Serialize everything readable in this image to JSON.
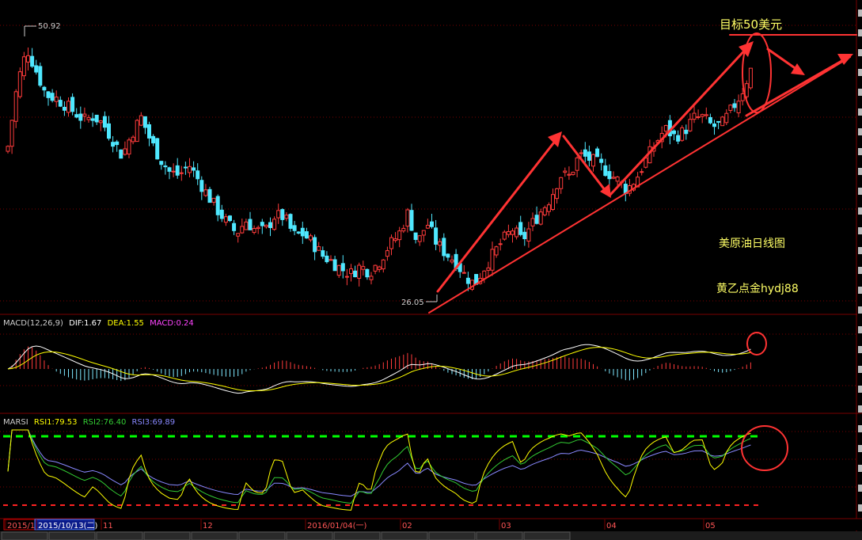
{
  "chart_data": [
    {
      "type": "candlestick",
      "price_high_label": "50.92",
      "price_low_label": "26.05",
      "ylim": [
        24.5,
        53
      ],
      "up_color": "#ff3b3b",
      "down_color": "#4fe8ff",
      "annotation_target": "目标50美元",
      "annotation_title": "美原油日线图",
      "annotation_author": "黄乙点金hydj88",
      "x_ticks": [
        {
          "label": "2015/1",
          "boxed": "red"
        },
        {
          "label": "2015/10/13(二)",
          "boxed": "blue"
        },
        {
          "label": "11"
        },
        {
          "label": "12"
        },
        {
          "label": "2016/01/04(一)"
        },
        {
          "label": "02"
        },
        {
          "label": "03"
        },
        {
          "label": "04"
        },
        {
          "label": "05"
        }
      ],
      "close_path": [
        40.5,
        47.0,
        50.6,
        48.2,
        45.8,
        45.5,
        44.8,
        44.0,
        43.2,
        43.6,
        42.8,
        41.2,
        39.5,
        41.8,
        43.5,
        41.0,
        39.2,
        37.8,
        37.5,
        38.6,
        37.0,
        35.4,
        33.9,
        32.6,
        31.5,
        32.8,
        31.8,
        31.7,
        33.3,
        33.2,
        31.3,
        31.4,
        30.5,
        29.2,
        28.6,
        27.8,
        27.3,
        28.1,
        27.5,
        28.6,
        30.2,
        31.3,
        33.6,
        30.4,
        32.6,
        30.5,
        29.4,
        28.6,
        27.1,
        26.2,
        27.9,
        29.4,
        30.8,
        31.9,
        30.7,
        32.4,
        33.8,
        35.2,
        37.5,
        37.4,
        39.6,
        39.2,
        38.7,
        37.8,
        37.0,
        36.0,
        37.2,
        39.1,
        40.8,
        42.3,
        41.5,
        42.0,
        43.4,
        43.5,
        42.5,
        42.8,
        44.3,
        45.9,
        48.4
      ]
    },
    {
      "type": "line",
      "title": "MACD(12,26,9)",
      "items": [
        {
          "name": "DIF",
          "value": "1.67",
          "color": "#ffffff"
        },
        {
          "name": "DEA",
          "value": "1.55",
          "color": "#ffff00"
        },
        {
          "name": "MACD",
          "value": "0.24",
          "color": "#ff44ff"
        }
      ],
      "histogram_pos_color": "#ff3b3b",
      "histogram_neg_color": "#7fe8ff"
    },
    {
      "type": "line",
      "title": "MARSI",
      "items": [
        {
          "name": "RSI1",
          "value": "79.53",
          "color": "#ffff00"
        },
        {
          "name": "RSI2",
          "value": "76.40",
          "color": "#33cc33"
        },
        {
          "name": "RSI3",
          "value": "69.89",
          "color": "#8888ff"
        }
      ],
      "overbought_color": "#00ff00",
      "oversold_color": "#ff2222"
    }
  ],
  "bottom_strip": {
    "tabs": [
      "",
      "",
      "",
      "",
      "",
      "",
      "",
      "",
      "",
      "",
      "",
      ""
    ]
  }
}
